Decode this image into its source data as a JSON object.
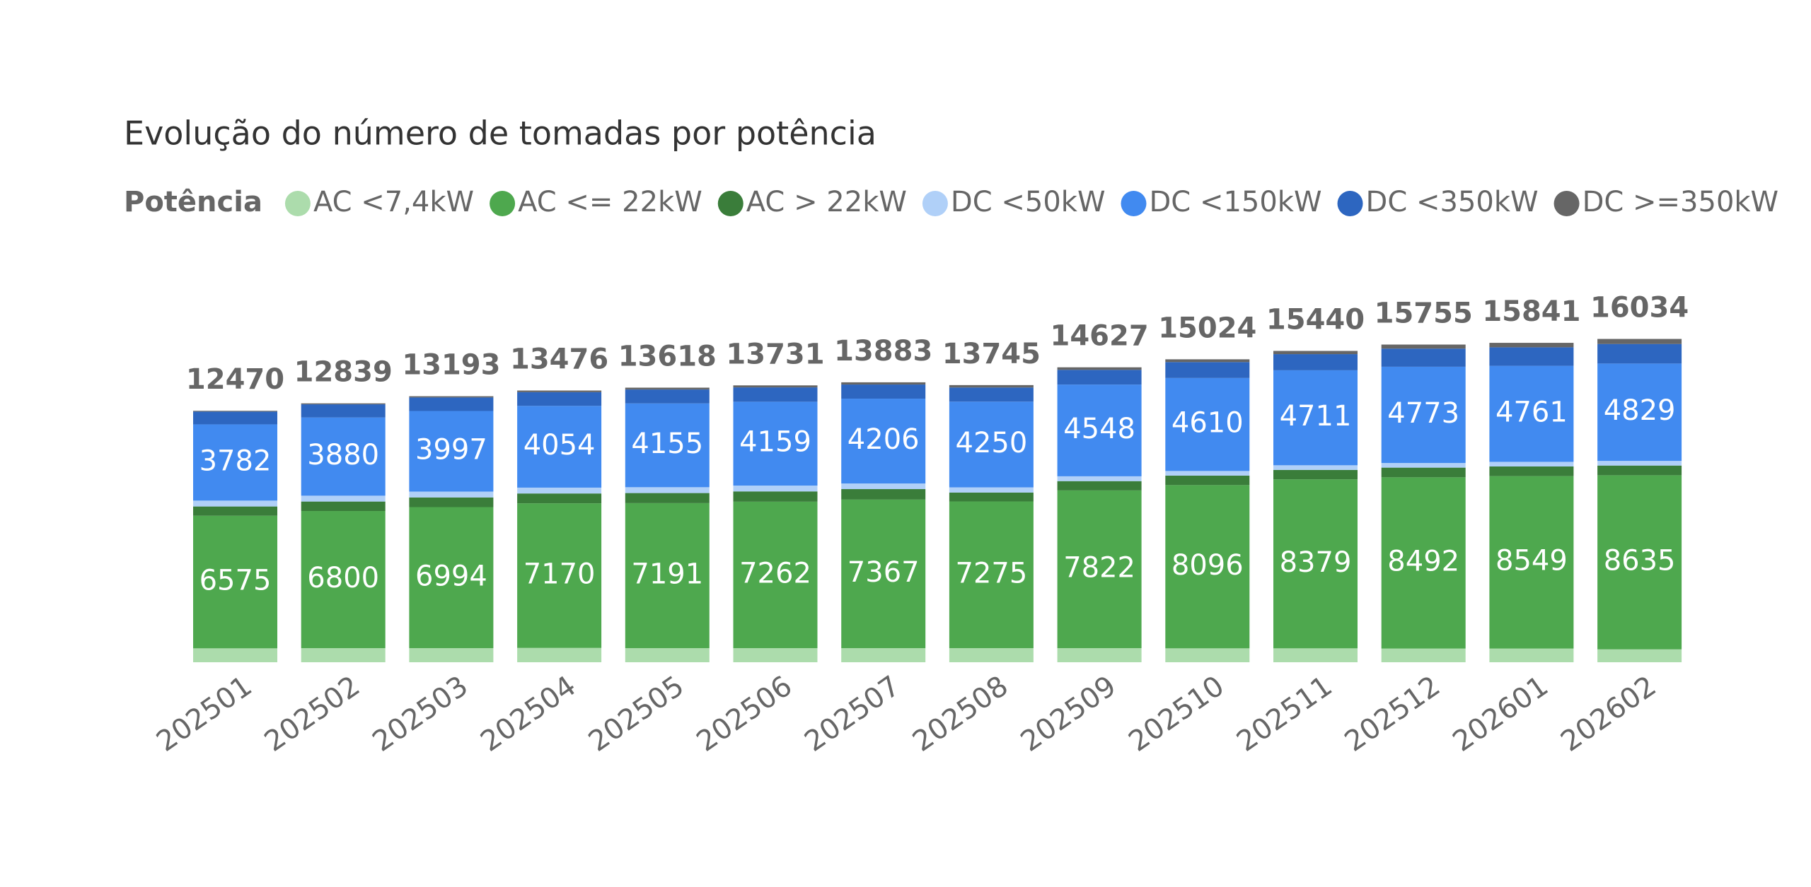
{
  "chart_data": {
    "type": "stacked_bar",
    "title": "Evolução do número de tomadas por potência",
    "legend_title": "Potência",
    "categories": [
      "202501",
      "202502",
      "202503",
      "202504",
      "202505",
      "202506",
      "202507",
      "202508",
      "202509",
      "202510",
      "202511",
      "202512",
      "202601",
      "202602"
    ],
    "series": [
      {
        "name": "AC <7,4kW",
        "color": "#acdcac",
        "values": [
          690,
          700,
          700,
          710,
          700,
          700,
          700,
          700,
          700,
          690,
          690,
          680,
          680,
          640
        ]
      },
      {
        "name": "AC <= 22kW",
        "color": "#4ea84e",
        "show_labels": true,
        "values": [
          6575,
          6800,
          6994,
          7170,
          7191,
          7262,
          7367,
          7275,
          7822,
          8096,
          8379,
          8492,
          8549,
          8635
        ]
      },
      {
        "name": "AC > 22kW",
        "color": "#3a7d3a",
        "values": [
          460,
          470,
          480,
          490,
          500,
          510,
          520,
          440,
          460,
          470,
          470,
          480,
          480,
          480
        ]
      },
      {
        "name": "DC <50kW",
        "color": "#b0d0f8",
        "values": [
          290,
          290,
          290,
          290,
          290,
          290,
          280,
          260,
          240,
          230,
          230,
          230,
          230,
          230
        ]
      },
      {
        "name": "DC <150kW",
        "color": "#418af0",
        "show_labels": true,
        "values": [
          3782,
          3880,
          3997,
          4054,
          4155,
          4159,
          4206,
          4250,
          4548,
          4610,
          4711,
          4773,
          4761,
          4829
        ]
      },
      {
        "name": "DC <350kW",
        "color": "#2d66c0",
        "values": [
          633,
          650,
          670,
          680,
          690,
          710,
          700,
          700,
          730,
          790,
          800,
          900,
          920,
          970
        ]
      },
      {
        "name": "DC >=350kW",
        "color": "#666666",
        "values": [
          40,
          49,
          62,
          82,
          92,
          100,
          110,
          120,
          127,
          138,
          160,
          200,
          221,
          250
        ]
      }
    ],
    "totals": [
      12470,
      12839,
      13193,
      13476,
      13618,
      13731,
      13883,
      13745,
      14627,
      15024,
      15440,
      15755,
      15841,
      16034
    ],
    "ylim": [
      0,
      17000
    ]
  }
}
